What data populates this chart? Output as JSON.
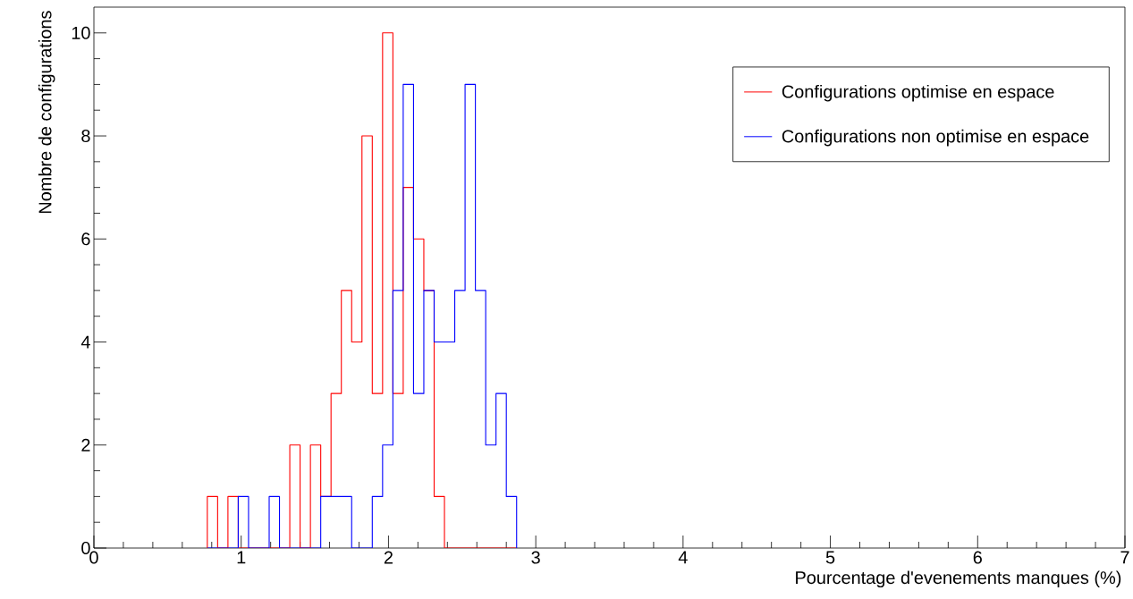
{
  "chart_data": {
    "type": "histogram",
    "xlabel": "Pourcentage d'evenements manques (%)",
    "ylabel": "Nombre de configurations",
    "bins": [
      0.77,
      0.84,
      0.91,
      0.98,
      1.05,
      1.12,
      1.19,
      1.26,
      1.33,
      1.4,
      1.47,
      1.54,
      1.61,
      1.68,
      1.75,
      1.82,
      1.89,
      1.96,
      2.03,
      2.1,
      2.17,
      2.24,
      2.31,
      2.38,
      2.45,
      2.52,
      2.59,
      2.66,
      2.73,
      2.8,
      2.87
    ],
    "series": [
      {
        "name": "Configurations optimise en espace",
        "color": "#ff0000",
        "values": [
          1,
          0,
          1,
          0,
          0,
          0,
          0,
          0,
          2,
          0,
          2,
          1,
          3,
          5,
          4,
          8,
          3,
          10,
          3,
          7,
          6,
          5,
          1,
          0,
          0,
          0,
          0,
          0,
          0,
          0
        ]
      },
      {
        "name": "Configurations non optimise en espace",
        "color": "#0000ff",
        "values": [
          0,
          0,
          0,
          1,
          0,
          0,
          1,
          0,
          0,
          0,
          0,
          1,
          1,
          1,
          0,
          0,
          1,
          2,
          5,
          9,
          3,
          5,
          4,
          4,
          5,
          9,
          5,
          2,
          3,
          1
        ]
      }
    ],
    "xlim": [
      0,
      7
    ],
    "xticks": [
      0,
      1,
      2,
      3,
      4,
      5,
      6,
      7
    ],
    "ylim": [
      0,
      10.5
    ],
    "yticks": [
      0,
      2,
      4,
      6,
      8,
      10
    ],
    "grid": false,
    "legend": "top right"
  }
}
